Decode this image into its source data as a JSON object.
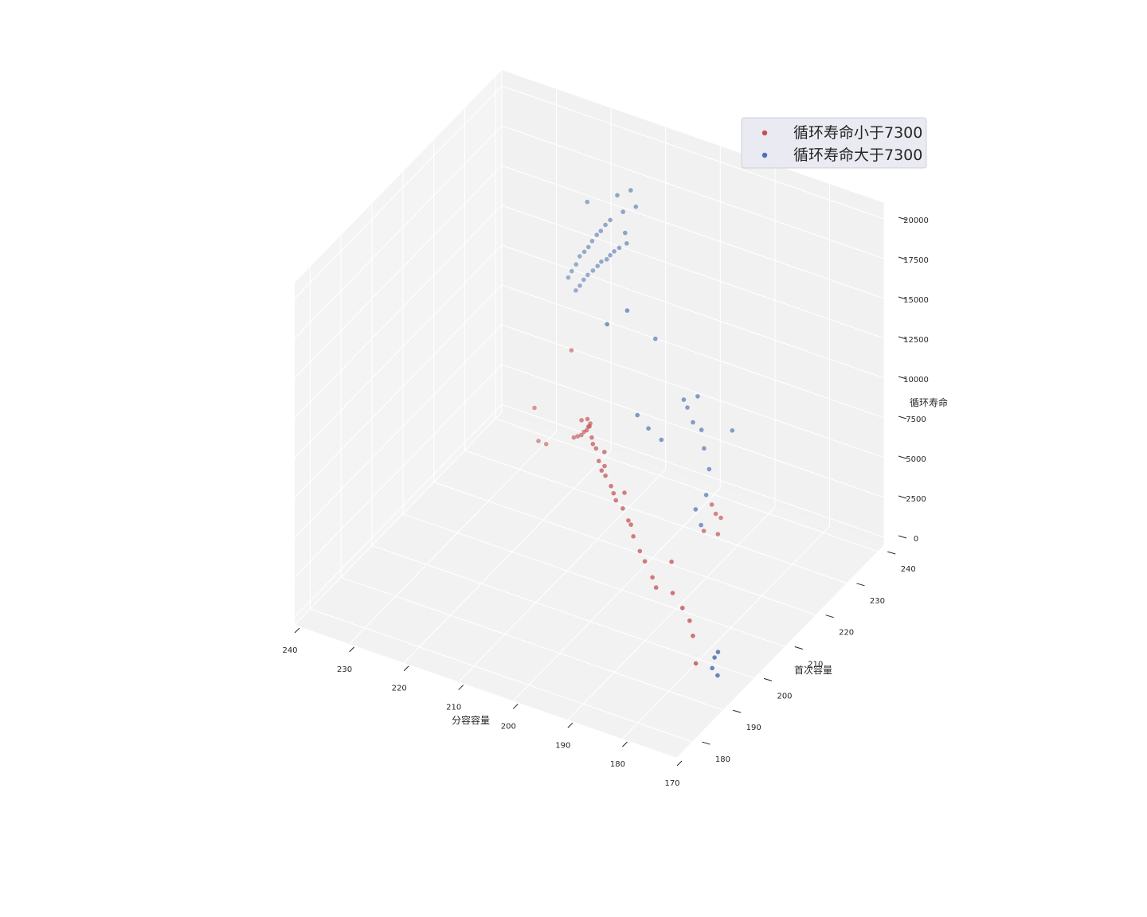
{
  "chart_data": {
    "type": "scatter",
    "projection": "3d",
    "grid": true,
    "legend_position": "top-right",
    "xlabel": "分容容量",
    "ylabel": "首次容量",
    "zlabel": "循环寿命",
    "xlim": [
      170,
      240
    ],
    "ylim": [
      175,
      242
    ],
    "zlim": [
      -500,
      21000
    ],
    "xticks": [
      240,
      230,
      220,
      210,
      200,
      190,
      180,
      170
    ],
    "yticks": [
      180,
      190,
      200,
      210,
      220,
      230,
      240
    ],
    "zticks": [
      0,
      2500,
      5000,
      7500,
      10000,
      12500,
      15000,
      17500,
      20000
    ],
    "series": [
      {
        "name": "循环寿命小于7300",
        "color": "#c44e52",
        "points": [
          [
            180.9,
            199.4,
            1000
          ],
          [
            178.1,
            195.4,
            400
          ],
          [
            182.3,
            200.8,
            1500
          ],
          [
            186.2,
            202.2,
            2500
          ],
          [
            201.2,
            209.6,
            5500
          ],
          [
            203.3,
            210.4,
            6800
          ],
          [
            220.3,
            229.7,
            8200
          ],
          [
            226.1,
            231.8,
            1200
          ],
          [
            228.2,
            233.0,
            900
          ],
          [
            228.7,
            232.6,
            3000
          ],
          [
            191.1,
            205.5,
            1600
          ],
          [
            192.1,
            206.1,
            2000
          ],
          [
            194.0,
            207.0,
            2600
          ],
          [
            195.2,
            207.5,
            3000
          ],
          [
            196.8,
            208.2,
            3600
          ],
          [
            198.1,
            208.9,
            4300
          ],
          [
            199.4,
            209.4,
            4800
          ],
          [
            204.8,
            212.1,
            6000
          ],
          [
            205.6,
            212.6,
            6400
          ],
          [
            206.4,
            213.1,
            7000
          ],
          [
            207.2,
            213.5,
            7100
          ],
          [
            201.0,
            210.0,
            5000
          ],
          [
            202.3,
            210.7,
            5600
          ],
          [
            203.6,
            211.2,
            6000
          ],
          [
            197.4,
            208.5,
            4200
          ],
          [
            186.9,
            216.1,
            5200
          ],
          [
            186.4,
            216.5,
            4600
          ],
          [
            185.8,
            217.1,
            4300
          ],
          [
            185.1,
            214.9,
            3800
          ],
          [
            186.6,
            213.0,
            4200
          ],
          [
            183.5,
            200.6,
            2200
          ],
          [
            188.6,
            206.1,
            3400
          ],
          [
            207.8,
            214.2,
            7300
          ],
          [
            205.2,
            213.7,
            6800
          ],
          [
            200.0,
            211.0,
            5400
          ],
          [
            210.5,
            218.5,
            7000
          ],
          [
            211.2,
            219.1,
            6600
          ],
          [
            212.0,
            220.0,
            6100
          ],
          [
            212.8,
            220.5,
            5800
          ],
          [
            214.0,
            221.8,
            5200
          ],
          [
            215.2,
            222.7,
            4800
          ],
          [
            216.4,
            223.6,
            4400
          ],
          [
            213.4,
            220.8,
            6400
          ],
          [
            209.8,
            217.0,
            7200
          ],
          [
            211.7,
            219.7,
            6900
          ]
        ]
      },
      {
        "name": "循环寿命大于7300",
        "color": "#4c72b0",
        "points": [
          [
            172.9,
            191.5,
            1500
          ],
          [
            172.3,
            191.2,
            2300
          ],
          [
            171.5,
            190.9,
            2800
          ],
          [
            171.4,
            190.6,
            1400
          ],
          [
            195.0,
            214.1,
            8700
          ],
          [
            196.8,
            213.1,
            9400
          ],
          [
            198.6,
            212.7,
            10100
          ],
          [
            193.4,
            219.7,
            9800
          ],
          [
            190.1,
            217.2,
            11400
          ],
          [
            192.2,
            216.4,
            11100
          ],
          [
            197.4,
            216.4,
            14300
          ],
          [
            201.2,
            214.0,
            16100
          ],
          [
            203.4,
            211.4,
            15500
          ],
          [
            186.5,
            211.9,
            4800
          ],
          [
            187.2,
            211.4,
            5800
          ],
          [
            186.4,
            213.4,
            6400
          ],
          [
            187.1,
            215.6,
            7500
          ],
          [
            187.8,
            215.2,
            8800
          ],
          [
            188.5,
            215.6,
            9800
          ],
          [
            189.6,
            214.8,
            10300
          ],
          [
            184.0,
            217.6,
            9900
          ],
          [
            207.8,
            225.0,
            18000
          ],
          [
            208.3,
            226.4,
            17000
          ],
          [
            210.0,
            227.0,
            16400
          ],
          [
            211.5,
            228.0,
            15800
          ],
          [
            212.8,
            229.0,
            15200
          ],
          [
            214.0,
            230.0,
            14600
          ],
          [
            215.5,
            230.9,
            14100
          ],
          [
            216.7,
            231.8,
            13500
          ],
          [
            218.0,
            232.6,
            12900
          ],
          [
            219.4,
            233.4,
            12300
          ],
          [
            220.6,
            234.2,
            11700
          ],
          [
            221.8,
            235.1,
            11000
          ],
          [
            223.0,
            235.9,
            10400
          ],
          [
            209.2,
            226.8,
            18800
          ],
          [
            210.7,
            227.6,
            19500
          ],
          [
            207.4,
            226.1,
            20500
          ],
          [
            206.0,
            225.3,
            19800
          ],
          [
            212.4,
            228.3,
            17600
          ],
          [
            213.9,
            229.4,
            16900
          ],
          [
            215.2,
            230.2,
            16200
          ],
          [
            216.5,
            231.2,
            15600
          ],
          [
            217.8,
            232.0,
            14900
          ],
          [
            219.0,
            232.9,
            14200
          ],
          [
            220.2,
            233.7,
            13600
          ],
          [
            221.5,
            234.5,
            13000
          ],
          [
            222.6,
            235.3,
            12200
          ],
          [
            223.8,
            236.0,
            11500
          ],
          [
            224.9,
            236.8,
            10800
          ],
          [
            218.6,
            231.8,
            17300
          ]
        ]
      }
    ]
  }
}
